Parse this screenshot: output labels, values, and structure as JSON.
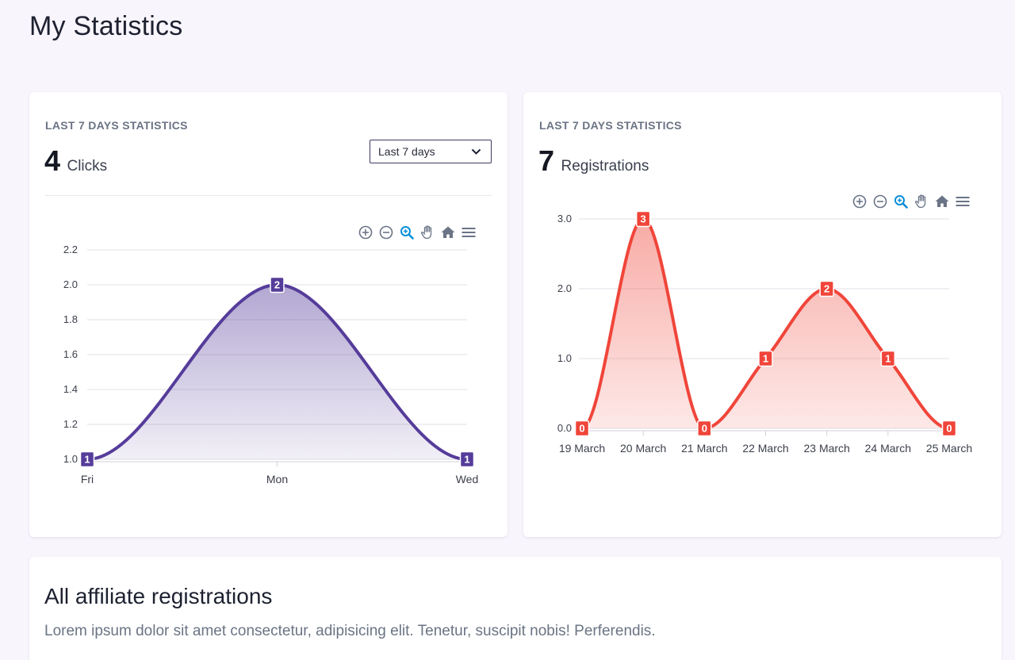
{
  "page": {
    "title": "My Statistics"
  },
  "clicks_card": {
    "label": "LAST 7 DAYS STATISTICS",
    "count": "4",
    "unit": "Clicks",
    "range_select": {
      "value": "Last 7 days"
    }
  },
  "registrations_card": {
    "label": "LAST 7 DAYS STATISTICS",
    "count": "7",
    "unit": "Registrations"
  },
  "toolbar": {
    "icons": [
      "zoom-in-icon",
      "zoom-out-icon",
      "selection-zoom-icon",
      "pan-hand-icon",
      "home-reset-icon",
      "menu-icon"
    ]
  },
  "affiliate": {
    "title": "All affiliate registrations",
    "description": "Lorem ipsum dolor sit amet consectetur, adipisicing elit. Tenetur, suscipit nobis! Perferendis."
  },
  "colors": {
    "clicks_line": "#553c9a",
    "registrations_line": "#f0453a",
    "toolbar_active": "#0a8fd8",
    "toolbar_icon": "#6a7486"
  },
  "chart_data": [
    {
      "type": "area",
      "categories": [
        "Fri",
        "Mon",
        "Wed"
      ],
      "values": [
        1,
        2,
        1
      ],
      "data_labels": [
        "1",
        "2",
        "1"
      ],
      "y_ticks": [
        "1.0",
        "1.2",
        "1.4",
        "1.6",
        "1.8",
        "2.0",
        "2.2"
      ],
      "ylim": [
        1.0,
        2.2
      ],
      "grid": true,
      "smooth": true
    },
    {
      "type": "area",
      "categories": [
        "19 March",
        "20 March",
        "21 March",
        "22 March",
        "23 March",
        "24 March",
        "25 March"
      ],
      "values": [
        0,
        3,
        0,
        1,
        2,
        1,
        0
      ],
      "data_labels": [
        "0",
        "3",
        "0",
        "1",
        "2",
        "1",
        "0"
      ],
      "y_ticks": [
        "0.0",
        "1.0",
        "2.0",
        "3.0"
      ],
      "ylim": [
        0,
        3
      ],
      "grid": true,
      "smooth": true
    }
  ]
}
